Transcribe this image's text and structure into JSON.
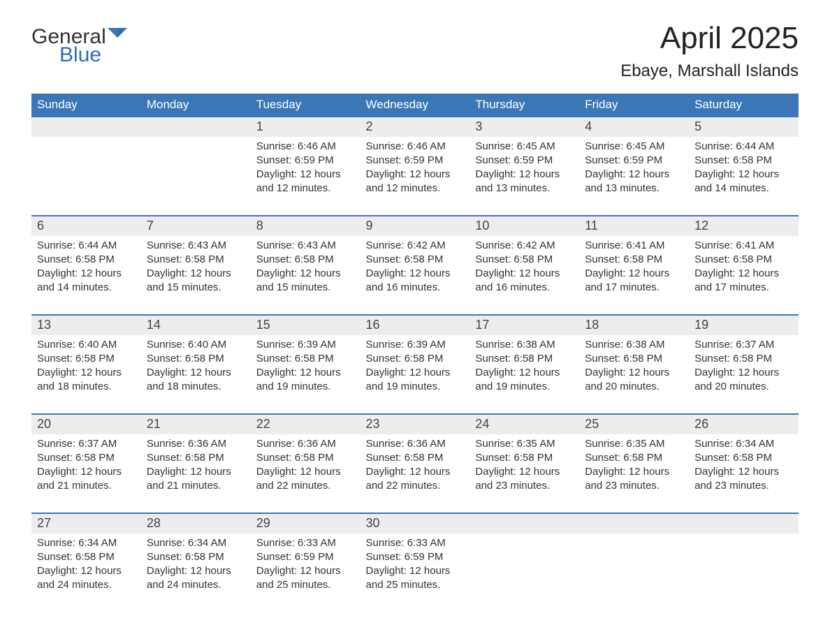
{
  "logo": {
    "text1": "General",
    "text2": "Blue"
  },
  "title": "April 2025",
  "location": "Ebaye, Marshall Islands",
  "colors": {
    "header_bg": "#3b77b7",
    "header_text": "#ffffff",
    "daynum_bg": "#ededed",
    "rule": "#3b77b7",
    "body_text": "#333333",
    "logo_blue": "#2f6eb0"
  },
  "weekdays": [
    "Sunday",
    "Monday",
    "Tuesday",
    "Wednesday",
    "Thursday",
    "Friday",
    "Saturday"
  ],
  "weeks": [
    [
      null,
      null,
      {
        "n": "1",
        "sunrise": "6:46 AM",
        "sunset": "6:59 PM",
        "daylight": "12 hours and 12 minutes."
      },
      {
        "n": "2",
        "sunrise": "6:46 AM",
        "sunset": "6:59 PM",
        "daylight": "12 hours and 12 minutes."
      },
      {
        "n": "3",
        "sunrise": "6:45 AM",
        "sunset": "6:59 PM",
        "daylight": "12 hours and 13 minutes."
      },
      {
        "n": "4",
        "sunrise": "6:45 AM",
        "sunset": "6:59 PM",
        "daylight": "12 hours and 13 minutes."
      },
      {
        "n": "5",
        "sunrise": "6:44 AM",
        "sunset": "6:58 PM",
        "daylight": "12 hours and 14 minutes."
      }
    ],
    [
      {
        "n": "6",
        "sunrise": "6:44 AM",
        "sunset": "6:58 PM",
        "daylight": "12 hours and 14 minutes."
      },
      {
        "n": "7",
        "sunrise": "6:43 AM",
        "sunset": "6:58 PM",
        "daylight": "12 hours and 15 minutes."
      },
      {
        "n": "8",
        "sunrise": "6:43 AM",
        "sunset": "6:58 PM",
        "daylight": "12 hours and 15 minutes."
      },
      {
        "n": "9",
        "sunrise": "6:42 AM",
        "sunset": "6:58 PM",
        "daylight": "12 hours and 16 minutes."
      },
      {
        "n": "10",
        "sunrise": "6:42 AM",
        "sunset": "6:58 PM",
        "daylight": "12 hours and 16 minutes."
      },
      {
        "n": "11",
        "sunrise": "6:41 AM",
        "sunset": "6:58 PM",
        "daylight": "12 hours and 17 minutes."
      },
      {
        "n": "12",
        "sunrise": "6:41 AM",
        "sunset": "6:58 PM",
        "daylight": "12 hours and 17 minutes."
      }
    ],
    [
      {
        "n": "13",
        "sunrise": "6:40 AM",
        "sunset": "6:58 PM",
        "daylight": "12 hours and 18 minutes."
      },
      {
        "n": "14",
        "sunrise": "6:40 AM",
        "sunset": "6:58 PM",
        "daylight": "12 hours and 18 minutes."
      },
      {
        "n": "15",
        "sunrise": "6:39 AM",
        "sunset": "6:58 PM",
        "daylight": "12 hours and 19 minutes."
      },
      {
        "n": "16",
        "sunrise": "6:39 AM",
        "sunset": "6:58 PM",
        "daylight": "12 hours and 19 minutes."
      },
      {
        "n": "17",
        "sunrise": "6:38 AM",
        "sunset": "6:58 PM",
        "daylight": "12 hours and 19 minutes."
      },
      {
        "n": "18",
        "sunrise": "6:38 AM",
        "sunset": "6:58 PM",
        "daylight": "12 hours and 20 minutes."
      },
      {
        "n": "19",
        "sunrise": "6:37 AM",
        "sunset": "6:58 PM",
        "daylight": "12 hours and 20 minutes."
      }
    ],
    [
      {
        "n": "20",
        "sunrise": "6:37 AM",
        "sunset": "6:58 PM",
        "daylight": "12 hours and 21 minutes."
      },
      {
        "n": "21",
        "sunrise": "6:36 AM",
        "sunset": "6:58 PM",
        "daylight": "12 hours and 21 minutes."
      },
      {
        "n": "22",
        "sunrise": "6:36 AM",
        "sunset": "6:58 PM",
        "daylight": "12 hours and 22 minutes."
      },
      {
        "n": "23",
        "sunrise": "6:36 AM",
        "sunset": "6:58 PM",
        "daylight": "12 hours and 22 minutes."
      },
      {
        "n": "24",
        "sunrise": "6:35 AM",
        "sunset": "6:58 PM",
        "daylight": "12 hours and 23 minutes."
      },
      {
        "n": "25",
        "sunrise": "6:35 AM",
        "sunset": "6:58 PM",
        "daylight": "12 hours and 23 minutes."
      },
      {
        "n": "26",
        "sunrise": "6:34 AM",
        "sunset": "6:58 PM",
        "daylight": "12 hours and 23 minutes."
      }
    ],
    [
      {
        "n": "27",
        "sunrise": "6:34 AM",
        "sunset": "6:58 PM",
        "daylight": "12 hours and 24 minutes."
      },
      {
        "n": "28",
        "sunrise": "6:34 AM",
        "sunset": "6:58 PM",
        "daylight": "12 hours and 24 minutes."
      },
      {
        "n": "29",
        "sunrise": "6:33 AM",
        "sunset": "6:59 PM",
        "daylight": "12 hours and 25 minutes."
      },
      {
        "n": "30",
        "sunrise": "6:33 AM",
        "sunset": "6:59 PM",
        "daylight": "12 hours and 25 minutes."
      },
      null,
      null,
      null
    ]
  ],
  "labels": {
    "sunrise": "Sunrise: ",
    "sunset": "Sunset: ",
    "daylight": "Daylight: "
  }
}
